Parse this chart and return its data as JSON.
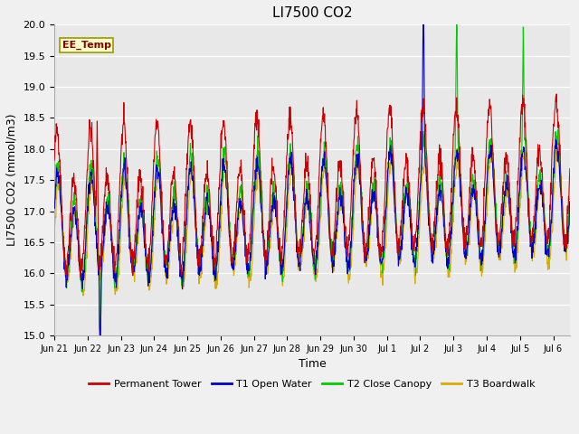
{
  "title": "LI7500 CO2",
  "ylabel": "LI7500 CO2 (mmol/m3)",
  "xlabel": "Time",
  "ylim": [
    15.0,
    20.0
  ],
  "yticks": [
    15.0,
    15.5,
    16.0,
    16.5,
    17.0,
    17.5,
    18.0,
    18.5,
    19.0,
    19.5,
    20.0
  ],
  "xtick_labels": [
    "Jun 21",
    "Jun 22",
    "Jun 23",
    "Jun 24",
    "Jun 25",
    "Jun 26",
    "Jun 27",
    "Jun 28",
    "Jun 29",
    "Jun 30",
    "Jul 1",
    "Jul 2",
    "Jul 3",
    "Jul 4",
    "Jul 5",
    "Jul 6"
  ],
  "colors": {
    "permanent_tower": "#cc0000",
    "t1_open_water": "#0000cc",
    "t2_close_canopy": "#00cc00",
    "t3_boardwalk": "#ddaa00"
  },
  "legend_labels": [
    "Permanent Tower",
    "T1 Open Water",
    "T2 Close Canopy",
    "T3 Boardwalk"
  ],
  "annotation_text": "EE_Temp",
  "annotation_box_color": "#ffffcc",
  "annotation_border_color": "#999900",
  "plot_bg_color": "#e8e8e8",
  "fig_bg_color": "#f0f0f0",
  "grid_color": "#ffffff",
  "title_fontsize": 11,
  "axis_label_fontsize": 9,
  "tick_fontsize": 8,
  "n_days": 15.5,
  "n_points": 1550
}
